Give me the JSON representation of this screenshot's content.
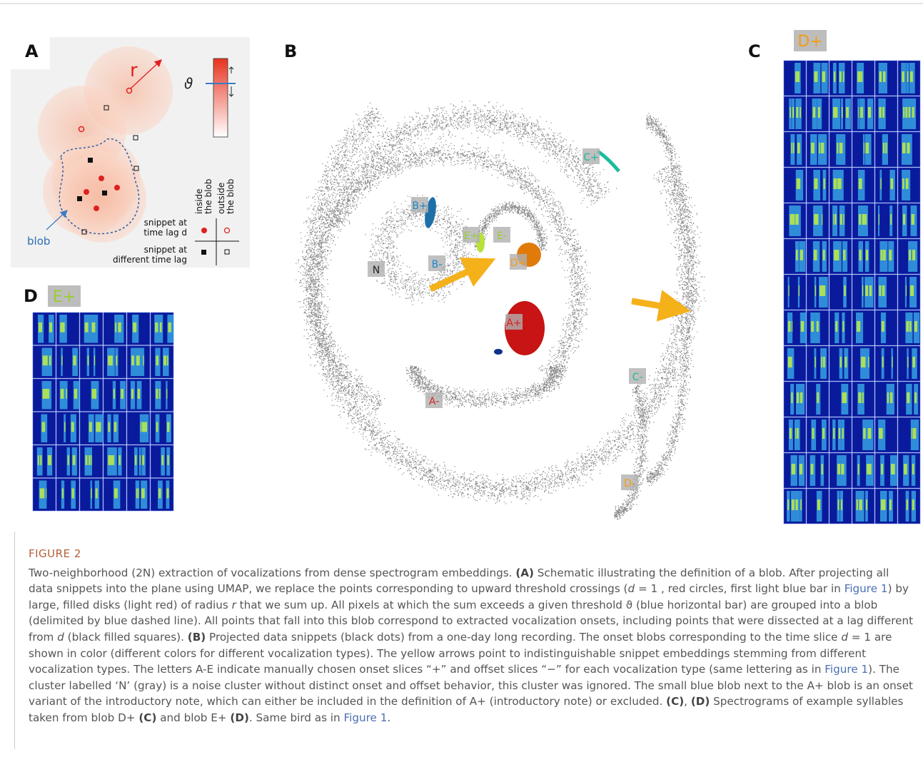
{
  "panel_a": {
    "label": "A",
    "radius": "r",
    "threshold": "ϑ",
    "blob": "blob",
    "inside": [
      "inside",
      "the blob"
    ],
    "outside": [
      "outside",
      "the blob"
    ],
    "snippet_d": [
      "snippet at",
      "time lag d"
    ],
    "snippet_other": [
      "snippet at",
      "different time lag"
    ]
  },
  "panel_b": {
    "label": "B",
    "tags": [
      {
        "text": "B+",
        "color": "#1e88c8"
      },
      {
        "text": "E+",
        "color": "#9acd32"
      },
      {
        "text": "E-",
        "color": "#9acd32"
      },
      {
        "text": "B-",
        "color": "#1e88c8"
      },
      {
        "text": "N",
        "color": "#222222"
      },
      {
        "text": "D+",
        "color": "#f39c12"
      },
      {
        "text": "A+",
        "color": "#d62222"
      },
      {
        "text": "A-",
        "color": "#d62222"
      },
      {
        "text": "C+",
        "color": "#1abc9c"
      },
      {
        "text": "C-",
        "color": "#1abc9c"
      },
      {
        "text": "D-",
        "color": "#f39c12"
      }
    ]
  },
  "panel_c": {
    "label": "C",
    "tag": "D+",
    "tag_color": "#f39c12"
  },
  "panel_d": {
    "label": "D",
    "tag": "E+",
    "tag_color": "#9acd32"
  },
  "caption": {
    "figure": "FIGURE 2",
    "runs": [
      "Two-neighborhood (2N) extraction of vocalizations from dense spectrogram embeddings. ",
      "(A)",
      " Schematic illustrating the definition of a blob. After projecting all data snippets into the plane using UMAP, we replace the points corresponding to upward threshold crossings (",
      "d",
      " = 1 , red circles, first light blue bar in ",
      "Figure 1",
      ") by large, filled disks (light red) of radius ",
      "r",
      " that we sum up. All pixels at which the sum exceeds a given threshold ϑ (blue horizontal bar) are grouped into a blob (delimited by blue dashed line). All points that fall into this blob correspond to extracted vocalization onsets, including points that were dissected at a lag different from ",
      "d",
      " (black filled squares). ",
      "(B)",
      " Projected data snippets (black dots) from a one-day long recording. The onset blobs corresponding to the time slice ",
      "d",
      " = 1 are shown in color (different colors for different vocalization types). The yellow arrows point to indistinguishable snippet embeddings stemming from different vocalization types. The letters A-E indicate manually chosen onset slices “+” and offset slices “−” for each vocalization type (same lettering as in ",
      "Figure 1",
      "). The cluster labelled ‘N’ (gray) is a noise cluster without distinct onset and offset behavior, this cluster was ignored. The small blue blob next to the A+ blob is an onset variant of the introductory note, which can either be included in the definition of A+ (introductory note) or excluded. ",
      "(C)",
      ", ",
      "(D)",
      " Spectrograms of example syllables taken from blob D+ ",
      "(C)",
      " and blob E+ ",
      "(D)",
      ". Same bird as in ",
      "Figure 1",
      "."
    ]
  }
}
